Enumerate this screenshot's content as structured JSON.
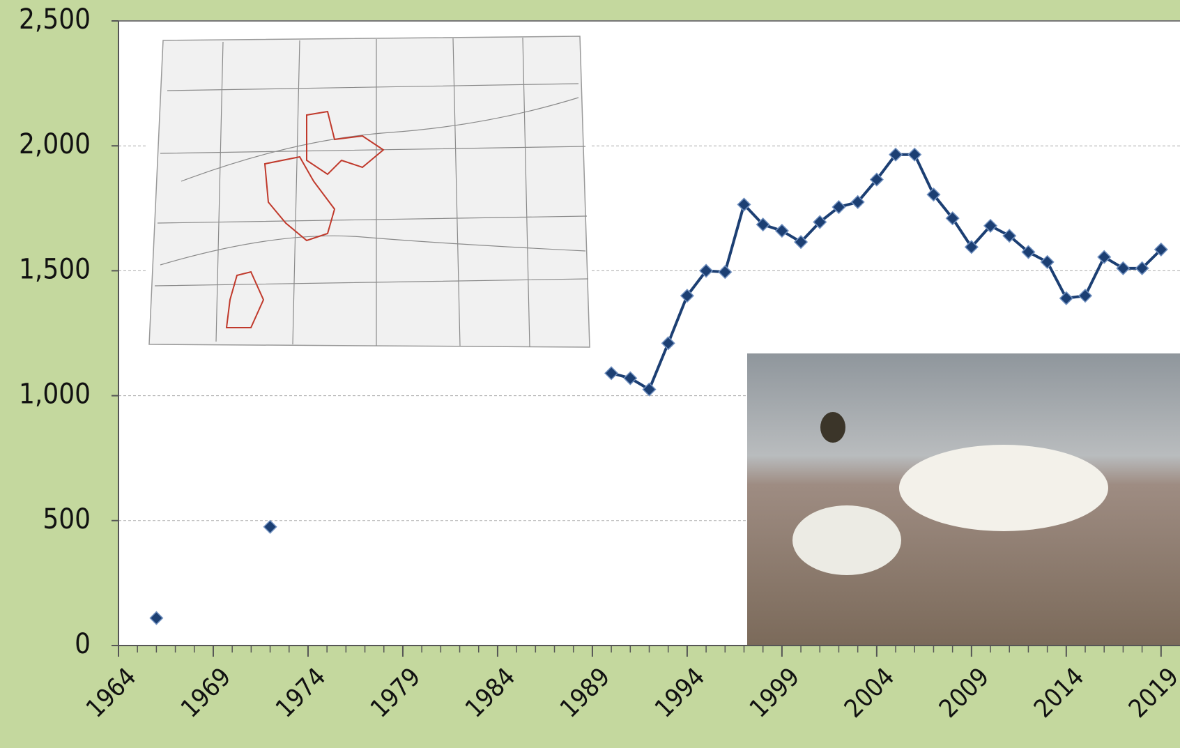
{
  "chart_data": {
    "type": "line",
    "x": [
      1964,
      1965,
      1966,
      1967,
      1968,
      1969,
      1970,
      1971,
      1972,
      1973,
      1974,
      1975,
      1976,
      1977,
      1978,
      1979,
      1980,
      1981,
      1982,
      1983,
      1984,
      1985,
      1986,
      1987,
      1988,
      1989,
      1990,
      1991,
      1992,
      1993,
      1994,
      1995,
      1996,
      1997,
      1998,
      1999,
      2000,
      2001,
      2002,
      2003,
      2004,
      2005,
      2006,
      2007,
      2008,
      2009,
      2010,
      2011,
      2012,
      2013,
      2014,
      2015,
      2016,
      2017,
      2018,
      2019
    ],
    "series": [
      {
        "color": "#1c3f73",
        "values": [
          null,
          null,
          110,
          null,
          null,
          null,
          null,
          null,
          475,
          null,
          null,
          null,
          null,
          null,
          null,
          null,
          null,
          null,
          null,
          null,
          null,
          null,
          null,
          null,
          null,
          null,
          1090,
          1070,
          1025,
          1210,
          1400,
          1500,
          1495,
          1765,
          1685,
          1660,
          1615,
          1695,
          1755,
          1775,
          1865,
          1965,
          1965,
          1805,
          1710,
          1595,
          1680,
          1640,
          1575,
          1535,
          1390,
          1400,
          1555,
          1510,
          1510,
          1585
        ]
      }
    ],
    "xlim": [
      1964,
      2020
    ],
    "xticks": [
      1964,
      1969,
      1974,
      1979,
      1984,
      1989,
      1994,
      1999,
      2004,
      2009,
      2014,
      2019
    ],
    "ylim": [
      0,
      2500
    ],
    "yticks": [
      0,
      500,
      {
        "value": 1000,
        "label": "1,000"
      },
      {
        "value": 1500,
        "label": "1,500"
      },
      {
        "value": 2000,
        "label": "2,000"
      },
      {
        "value": 2500,
        "label": "2,500"
      }
    ],
    "grid": true
  }
}
